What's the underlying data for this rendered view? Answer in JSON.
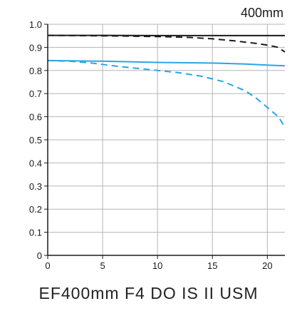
{
  "caption": "EF400mm F4 DO IS II USM",
  "chart_data": {
    "type": "line",
    "title": "400mm",
    "xlabel": "",
    "ylabel": "",
    "xlim": [
      0,
      21.6
    ],
    "ylim": [
      0,
      1.0
    ],
    "x_ticks": [
      "0",
      "5",
      "10",
      "15",
      "20"
    ],
    "y_ticks": [
      "0",
      "0.1",
      "0.2",
      "0.3",
      "0.4",
      "0.5",
      "0.6",
      "0.7",
      "0.8",
      "0.9",
      "1.0"
    ],
    "grid": true,
    "series": [
      {
        "color": "#1a1a1a",
        "style": "solid",
        "x": [
          0,
          5,
          10,
          15,
          20,
          21.6
        ],
        "y": [
          0.952,
          0.952,
          0.951,
          0.951,
          0.951,
          0.951
        ]
      },
      {
        "color": "#1a1a1a",
        "style": "dashed",
        "x": [
          0,
          5,
          10,
          13,
          15,
          17,
          19,
          20,
          21,
          21.6
        ],
        "y": [
          0.952,
          0.95,
          0.947,
          0.943,
          0.937,
          0.928,
          0.917,
          0.91,
          0.9,
          0.88
        ]
      },
      {
        "color": "#29a6e6",
        "style": "solid",
        "x": [
          0,
          5,
          10,
          15,
          18,
          20,
          21.6
        ],
        "y": [
          0.843,
          0.84,
          0.835,
          0.832,
          0.828,
          0.823,
          0.82
        ]
      },
      {
        "color": "#29a6e6",
        "style": "dashed",
        "x": [
          0,
          2,
          4,
          6,
          8,
          10,
          12,
          14,
          16,
          18,
          19,
          20,
          21,
          21.6
        ],
        "y": [
          0.843,
          0.84,
          0.832,
          0.82,
          0.81,
          0.8,
          0.79,
          0.775,
          0.752,
          0.712,
          0.68,
          0.64,
          0.6,
          0.555
        ]
      }
    ]
  }
}
